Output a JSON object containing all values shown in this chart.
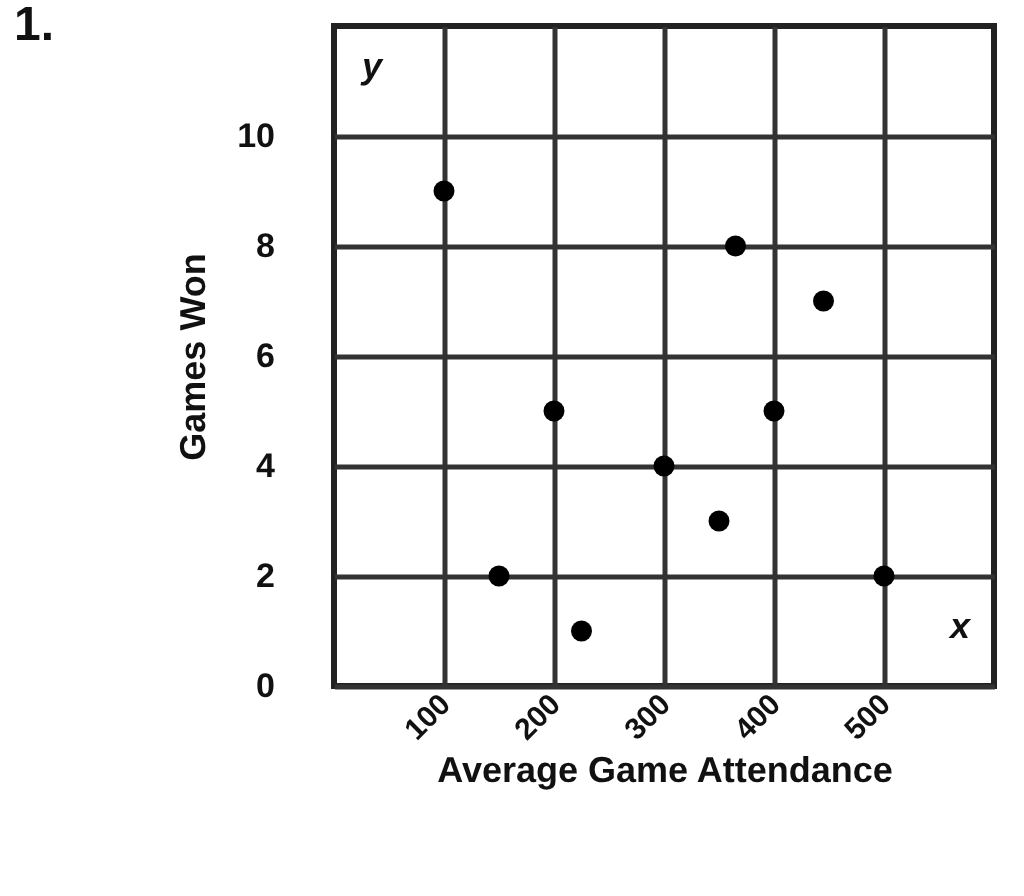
{
  "chart_data": {
    "type": "scatter",
    "title": "1.",
    "xlabel": "Average Game Attendance",
    "ylabel": "Games Won",
    "x": [
      100,
      150,
      200,
      225,
      300,
      350,
      365,
      400,
      445,
      500
    ],
    "values": [
      9,
      2,
      5,
      1,
      4,
      3,
      8,
      5,
      7,
      2
    ],
    "color": "#000000",
    "marker": "circle",
    "xlim": [
      0,
      600
    ],
    "xticks": [
      100,
      200,
      300,
      400,
      500
    ],
    "ylim": [
      0,
      12
    ],
    "yticks": [
      0,
      2,
      4,
      6,
      8,
      10
    ],
    "grid": true,
    "annotations": [
      "y",
      "x"
    ]
  }
}
